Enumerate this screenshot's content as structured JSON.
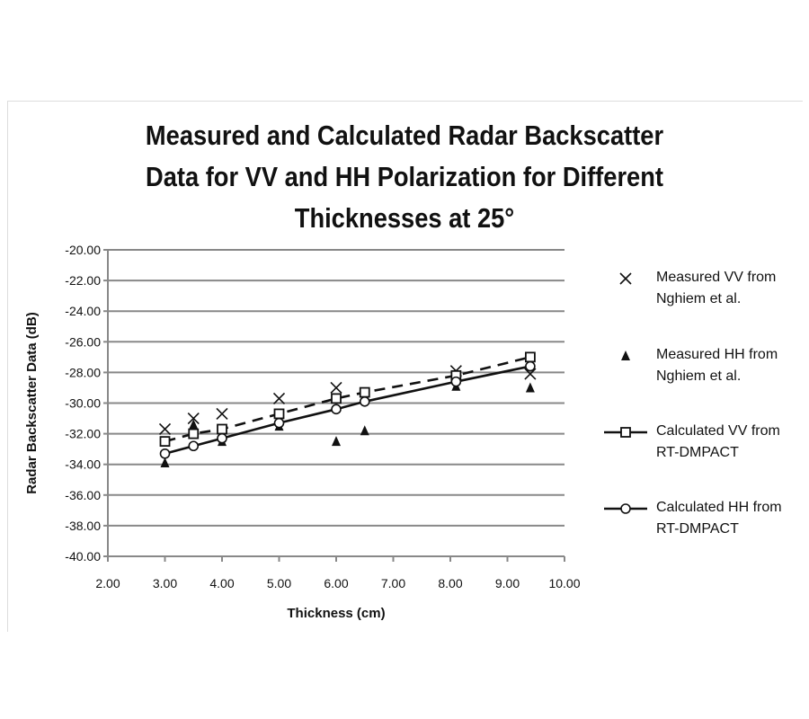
{
  "chart_data": {
    "type": "scatter",
    "title": "Measured and Calculated Radar Backscatter Data for VV and HH Polarization for Different Thicknesses at 25°",
    "title_lines": [
      "Measured and Calculated Radar Backscatter",
      "Data for VV and HH Polarization for Different",
      "Thicknesses at 25°"
    ],
    "xlabel": "Thickness (cm)",
    "ylabel": "Radar Backscatter Data (dB)",
    "xlim": [
      2,
      10
    ],
    "ylim": [
      -40,
      -20
    ],
    "xticks": [
      "2.00",
      "3.00",
      "4.00",
      "5.00",
      "6.00",
      "7.00",
      "8.00",
      "9.00",
      "10.00"
    ],
    "yticks": [
      "-20.00",
      "-22.00",
      "-24.00",
      "-26.00",
      "-28.00",
      "-30.00",
      "-32.00",
      "-34.00",
      "-36.00",
      "-38.00",
      "-40.00"
    ],
    "grid": true,
    "legend_position": "right",
    "series": [
      {
        "name": "Measured VV from Nghiem et al.",
        "legend_lines": [
          "Measured VV from",
          "Nghiem et al."
        ],
        "marker": "x",
        "line": "none",
        "x": [
          3.0,
          3.5,
          4.0,
          5.0,
          6.0,
          8.1,
          9.4
        ],
        "y": [
          -31.7,
          -31.0,
          -30.7,
          -29.7,
          -29.0,
          -27.9,
          -28.1
        ]
      },
      {
        "name": "Measured HH from Nghiem et al.",
        "legend_lines": [
          "Measured HH from",
          "Nghiem et al."
        ],
        "marker": "triangle",
        "line": "none",
        "x": [
          3.0,
          3.5,
          4.0,
          5.0,
          6.0,
          6.5,
          8.1,
          9.4
        ],
        "y": [
          -33.9,
          -31.4,
          -32.5,
          -31.5,
          -32.5,
          -31.8,
          -28.9,
          -29.0
        ]
      },
      {
        "name": "Calculated VV from RT-DMPACT",
        "legend_lines": [
          "Calculated VV from",
          "RT-DMPACT"
        ],
        "marker": "square",
        "line": "dashed",
        "x": [
          3.0,
          3.5,
          4.0,
          5.0,
          6.0,
          6.5,
          8.1,
          9.4
        ],
        "y": [
          -32.5,
          -32.0,
          -31.7,
          -30.7,
          -29.7,
          -29.3,
          -28.2,
          -27.0
        ]
      },
      {
        "name": "Calculated HH from RT-DMPACT",
        "legend_lines": [
          "Calculated HH from",
          "RT-DMPACT"
        ],
        "marker": "circle",
        "line": "solid",
        "x": [
          3.0,
          3.5,
          4.0,
          5.0,
          6.0,
          6.5,
          8.1,
          9.4
        ],
        "y": [
          -33.3,
          -32.8,
          -32.3,
          -31.3,
          -30.4,
          -29.9,
          -28.6,
          -27.6
        ]
      }
    ]
  }
}
